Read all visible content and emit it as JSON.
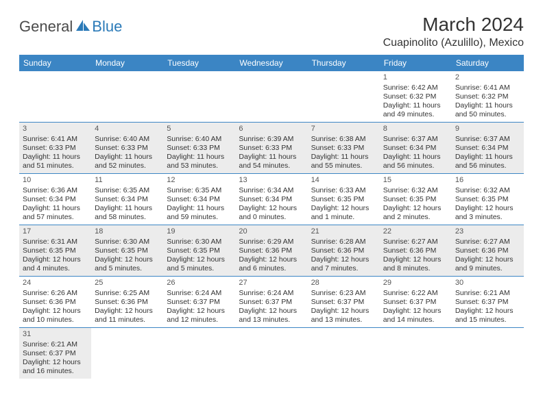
{
  "logo": {
    "text_gray": "General",
    "text_blue": "Blue"
  },
  "header": {
    "title": "March 2024",
    "location": "Cuapinolito (Azulillo), Mexico"
  },
  "colors": {
    "header_bg": "#3b85c4",
    "shaded_bg": "#ececec",
    "row_border": "#3b85c4",
    "logo_blue": "#2a7ab8"
  },
  "weekdays": [
    "Sunday",
    "Monday",
    "Tuesday",
    "Wednesday",
    "Thursday",
    "Friday",
    "Saturday"
  ],
  "weeks": [
    [
      {
        "n": "",
        "sr": "",
        "ss": "",
        "dl1": "",
        "dl2": "",
        "shaded": false
      },
      {
        "n": "",
        "sr": "",
        "ss": "",
        "dl1": "",
        "dl2": "",
        "shaded": false
      },
      {
        "n": "",
        "sr": "",
        "ss": "",
        "dl1": "",
        "dl2": "",
        "shaded": false
      },
      {
        "n": "",
        "sr": "",
        "ss": "",
        "dl1": "",
        "dl2": "",
        "shaded": false
      },
      {
        "n": "",
        "sr": "",
        "ss": "",
        "dl1": "",
        "dl2": "",
        "shaded": false
      },
      {
        "n": "1",
        "sr": "Sunrise: 6:42 AM",
        "ss": "Sunset: 6:32 PM",
        "dl1": "Daylight: 11 hours",
        "dl2": "and 49 minutes.",
        "shaded": false
      },
      {
        "n": "2",
        "sr": "Sunrise: 6:41 AM",
        "ss": "Sunset: 6:32 PM",
        "dl1": "Daylight: 11 hours",
        "dl2": "and 50 minutes.",
        "shaded": false
      }
    ],
    [
      {
        "n": "3",
        "sr": "Sunrise: 6:41 AM",
        "ss": "Sunset: 6:33 PM",
        "dl1": "Daylight: 11 hours",
        "dl2": "and 51 minutes.",
        "shaded": true
      },
      {
        "n": "4",
        "sr": "Sunrise: 6:40 AM",
        "ss": "Sunset: 6:33 PM",
        "dl1": "Daylight: 11 hours",
        "dl2": "and 52 minutes.",
        "shaded": true
      },
      {
        "n": "5",
        "sr": "Sunrise: 6:40 AM",
        "ss": "Sunset: 6:33 PM",
        "dl1": "Daylight: 11 hours",
        "dl2": "and 53 minutes.",
        "shaded": true
      },
      {
        "n": "6",
        "sr": "Sunrise: 6:39 AM",
        "ss": "Sunset: 6:33 PM",
        "dl1": "Daylight: 11 hours",
        "dl2": "and 54 minutes.",
        "shaded": true
      },
      {
        "n": "7",
        "sr": "Sunrise: 6:38 AM",
        "ss": "Sunset: 6:33 PM",
        "dl1": "Daylight: 11 hours",
        "dl2": "and 55 minutes.",
        "shaded": true
      },
      {
        "n": "8",
        "sr": "Sunrise: 6:37 AM",
        "ss": "Sunset: 6:34 PM",
        "dl1": "Daylight: 11 hours",
        "dl2": "and 56 minutes.",
        "shaded": true
      },
      {
        "n": "9",
        "sr": "Sunrise: 6:37 AM",
        "ss": "Sunset: 6:34 PM",
        "dl1": "Daylight: 11 hours",
        "dl2": "and 56 minutes.",
        "shaded": true
      }
    ],
    [
      {
        "n": "10",
        "sr": "Sunrise: 6:36 AM",
        "ss": "Sunset: 6:34 PM",
        "dl1": "Daylight: 11 hours",
        "dl2": "and 57 minutes.",
        "shaded": false
      },
      {
        "n": "11",
        "sr": "Sunrise: 6:35 AM",
        "ss": "Sunset: 6:34 PM",
        "dl1": "Daylight: 11 hours",
        "dl2": "and 58 minutes.",
        "shaded": false
      },
      {
        "n": "12",
        "sr": "Sunrise: 6:35 AM",
        "ss": "Sunset: 6:34 PM",
        "dl1": "Daylight: 11 hours",
        "dl2": "and 59 minutes.",
        "shaded": false
      },
      {
        "n": "13",
        "sr": "Sunrise: 6:34 AM",
        "ss": "Sunset: 6:34 PM",
        "dl1": "Daylight: 12 hours",
        "dl2": "and 0 minutes.",
        "shaded": false
      },
      {
        "n": "14",
        "sr": "Sunrise: 6:33 AM",
        "ss": "Sunset: 6:35 PM",
        "dl1": "Daylight: 12 hours",
        "dl2": "and 1 minute.",
        "shaded": false
      },
      {
        "n": "15",
        "sr": "Sunrise: 6:32 AM",
        "ss": "Sunset: 6:35 PM",
        "dl1": "Daylight: 12 hours",
        "dl2": "and 2 minutes.",
        "shaded": false
      },
      {
        "n": "16",
        "sr": "Sunrise: 6:32 AM",
        "ss": "Sunset: 6:35 PM",
        "dl1": "Daylight: 12 hours",
        "dl2": "and 3 minutes.",
        "shaded": false
      }
    ],
    [
      {
        "n": "17",
        "sr": "Sunrise: 6:31 AM",
        "ss": "Sunset: 6:35 PM",
        "dl1": "Daylight: 12 hours",
        "dl2": "and 4 minutes.",
        "shaded": true
      },
      {
        "n": "18",
        "sr": "Sunrise: 6:30 AM",
        "ss": "Sunset: 6:35 PM",
        "dl1": "Daylight: 12 hours",
        "dl2": "and 5 minutes.",
        "shaded": true
      },
      {
        "n": "19",
        "sr": "Sunrise: 6:30 AM",
        "ss": "Sunset: 6:35 PM",
        "dl1": "Daylight: 12 hours",
        "dl2": "and 5 minutes.",
        "shaded": true
      },
      {
        "n": "20",
        "sr": "Sunrise: 6:29 AM",
        "ss": "Sunset: 6:36 PM",
        "dl1": "Daylight: 12 hours",
        "dl2": "and 6 minutes.",
        "shaded": true
      },
      {
        "n": "21",
        "sr": "Sunrise: 6:28 AM",
        "ss": "Sunset: 6:36 PM",
        "dl1": "Daylight: 12 hours",
        "dl2": "and 7 minutes.",
        "shaded": true
      },
      {
        "n": "22",
        "sr": "Sunrise: 6:27 AM",
        "ss": "Sunset: 6:36 PM",
        "dl1": "Daylight: 12 hours",
        "dl2": "and 8 minutes.",
        "shaded": true
      },
      {
        "n": "23",
        "sr": "Sunrise: 6:27 AM",
        "ss": "Sunset: 6:36 PM",
        "dl1": "Daylight: 12 hours",
        "dl2": "and 9 minutes.",
        "shaded": true
      }
    ],
    [
      {
        "n": "24",
        "sr": "Sunrise: 6:26 AM",
        "ss": "Sunset: 6:36 PM",
        "dl1": "Daylight: 12 hours",
        "dl2": "and 10 minutes.",
        "shaded": false
      },
      {
        "n": "25",
        "sr": "Sunrise: 6:25 AM",
        "ss": "Sunset: 6:36 PM",
        "dl1": "Daylight: 12 hours",
        "dl2": "and 11 minutes.",
        "shaded": false
      },
      {
        "n": "26",
        "sr": "Sunrise: 6:24 AM",
        "ss": "Sunset: 6:37 PM",
        "dl1": "Daylight: 12 hours",
        "dl2": "and 12 minutes.",
        "shaded": false
      },
      {
        "n": "27",
        "sr": "Sunrise: 6:24 AM",
        "ss": "Sunset: 6:37 PM",
        "dl1": "Daylight: 12 hours",
        "dl2": "and 13 minutes.",
        "shaded": false
      },
      {
        "n": "28",
        "sr": "Sunrise: 6:23 AM",
        "ss": "Sunset: 6:37 PM",
        "dl1": "Daylight: 12 hours",
        "dl2": "and 13 minutes.",
        "shaded": false
      },
      {
        "n": "29",
        "sr": "Sunrise: 6:22 AM",
        "ss": "Sunset: 6:37 PM",
        "dl1": "Daylight: 12 hours",
        "dl2": "and 14 minutes.",
        "shaded": false
      },
      {
        "n": "30",
        "sr": "Sunrise: 6:21 AM",
        "ss": "Sunset: 6:37 PM",
        "dl1": "Daylight: 12 hours",
        "dl2": "and 15 minutes.",
        "shaded": false
      }
    ],
    [
      {
        "n": "31",
        "sr": "Sunrise: 6:21 AM",
        "ss": "Sunset: 6:37 PM",
        "dl1": "Daylight: 12 hours",
        "dl2": "and 16 minutes.",
        "shaded": true
      },
      {
        "n": "",
        "sr": "",
        "ss": "",
        "dl1": "",
        "dl2": "",
        "shaded": false
      },
      {
        "n": "",
        "sr": "",
        "ss": "",
        "dl1": "",
        "dl2": "",
        "shaded": false
      },
      {
        "n": "",
        "sr": "",
        "ss": "",
        "dl1": "",
        "dl2": "",
        "shaded": false
      },
      {
        "n": "",
        "sr": "",
        "ss": "",
        "dl1": "",
        "dl2": "",
        "shaded": false
      },
      {
        "n": "",
        "sr": "",
        "ss": "",
        "dl1": "",
        "dl2": "",
        "shaded": false
      },
      {
        "n": "",
        "sr": "",
        "ss": "",
        "dl1": "",
        "dl2": "",
        "shaded": false
      }
    ]
  ]
}
